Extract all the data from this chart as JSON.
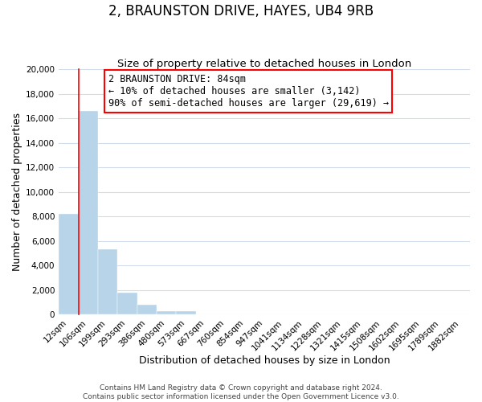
{
  "title": "2, BRAUNSTON DRIVE, HAYES, UB4 9RB",
  "subtitle": "Size of property relative to detached houses in London",
  "xlabel": "Distribution of detached houses by size in London",
  "ylabel": "Number of detached properties",
  "bar_labels": [
    "12sqm",
    "106sqm",
    "199sqm",
    "293sqm",
    "386sqm",
    "480sqm",
    "573sqm",
    "667sqm",
    "760sqm",
    "854sqm",
    "947sqm",
    "1041sqm",
    "1134sqm",
    "1228sqm",
    "1321sqm",
    "1415sqm",
    "1508sqm",
    "1602sqm",
    "1695sqm",
    "1789sqm",
    "1882sqm"
  ],
  "bar_heights": [
    8200,
    16600,
    5300,
    1800,
    800,
    300,
    300,
    0,
    0,
    0,
    0,
    0,
    0,
    0,
    0,
    0,
    0,
    0,
    0,
    0,
    0
  ],
  "bar_color": "#b8d4e8",
  "ylim": [
    0,
    20000
  ],
  "yticks": [
    0,
    2000,
    4000,
    6000,
    8000,
    10000,
    12000,
    14000,
    16000,
    18000,
    20000
  ],
  "annotation_title": "2 BRAUNSTON DRIVE: 84sqm",
  "annotation_line1": "← 10% of detached houses are smaller (3,142)",
  "annotation_line2": "90% of semi-detached houses are larger (29,619) →",
  "red_line_bar_index": 1,
  "footer_line1": "Contains HM Land Registry data © Crown copyright and database right 2024.",
  "footer_line2": "Contains public sector information licensed under the Open Government Licence v3.0.",
  "background_color": "#ffffff",
  "grid_color": "#d0dcea",
  "title_fontsize": 12,
  "subtitle_fontsize": 9.5,
  "axis_label_fontsize": 9,
  "tick_fontsize": 7.5,
  "annotation_fontsize": 8.5,
  "footer_fontsize": 6.5
}
